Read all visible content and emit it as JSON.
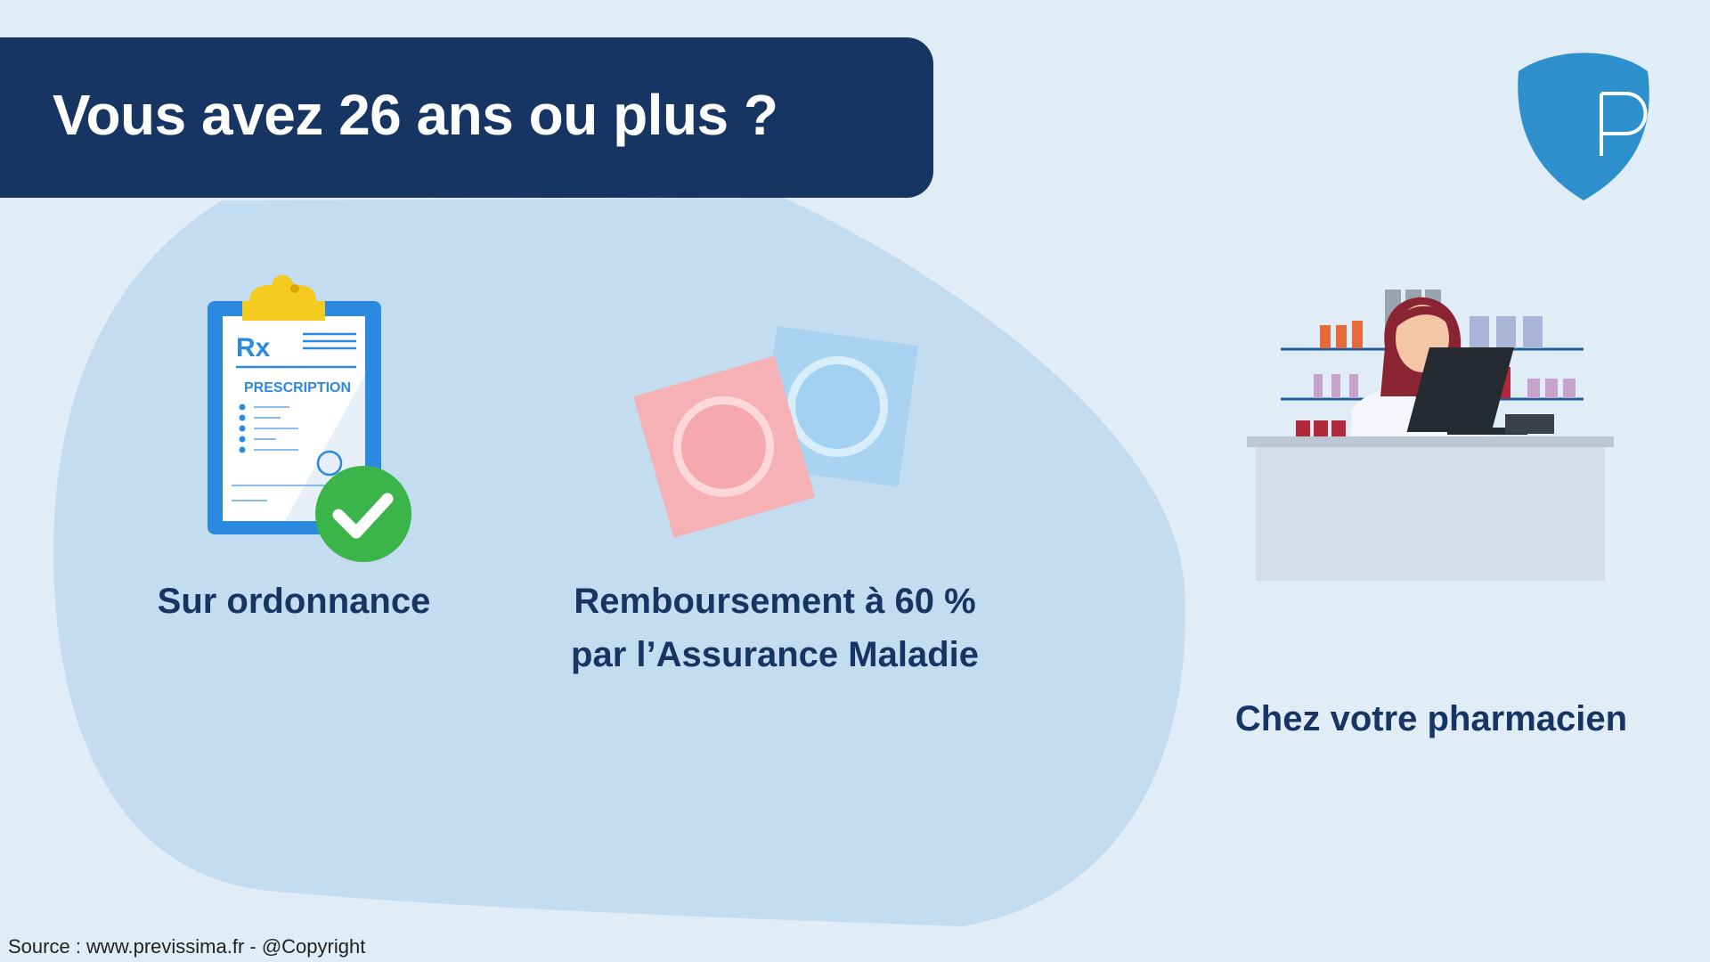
{
  "header": {
    "title": "Vous avez 26 ans ou plus ?"
  },
  "logo": {
    "letter": "P",
    "color": "#2d8fcc"
  },
  "items": [
    {
      "label": "Sur ordonnance",
      "icon": "prescription-clipboard-icon",
      "clipboard_text": "PRESCRIPTION",
      "rx": "Rx"
    },
    {
      "label_line1": "Remboursement à 60 %",
      "label_line2": "par l’Assurance Maladie",
      "icon": "condom-packets-icon"
    },
    {
      "label": "Chez votre pharmacien",
      "icon": "pharmacist-counter-icon"
    }
  ],
  "footer": {
    "source": "Source : www.previssima.fr - @Copyright"
  },
  "colors": {
    "background": "#e0edf7",
    "banner": "#163562",
    "blob": "#c3dcef",
    "text": "#173563"
  }
}
